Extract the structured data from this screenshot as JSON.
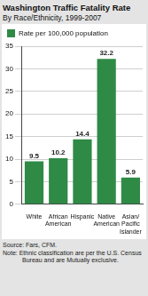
{
  "chart_data": {
    "type": "bar",
    "title": "Washington Traffic Fatality Rate",
    "subtitle": "By Race/Ethnicity, 1999-2007",
    "categories": [
      "White",
      "African American",
      "Hispanic",
      "Native American",
      "Asian/ Pacific Islander"
    ],
    "series": [
      {
        "name": "Rate per 100,000 population",
        "color": "#2f8a45",
        "values": [
          9.5,
          10.2,
          14.4,
          32.2,
          5.9
        ]
      }
    ],
    "ylim": [
      0,
      35
    ],
    "yticks": [
      0,
      5,
      10,
      15,
      20,
      25,
      30,
      35
    ],
    "grid": true,
    "legend": "top-left",
    "data_labels": true,
    "source": "Source: Fars, CFM.",
    "note": "Note: Ethnic classification are per the U.S. Census Bureau and are Mutually exclusive."
  }
}
